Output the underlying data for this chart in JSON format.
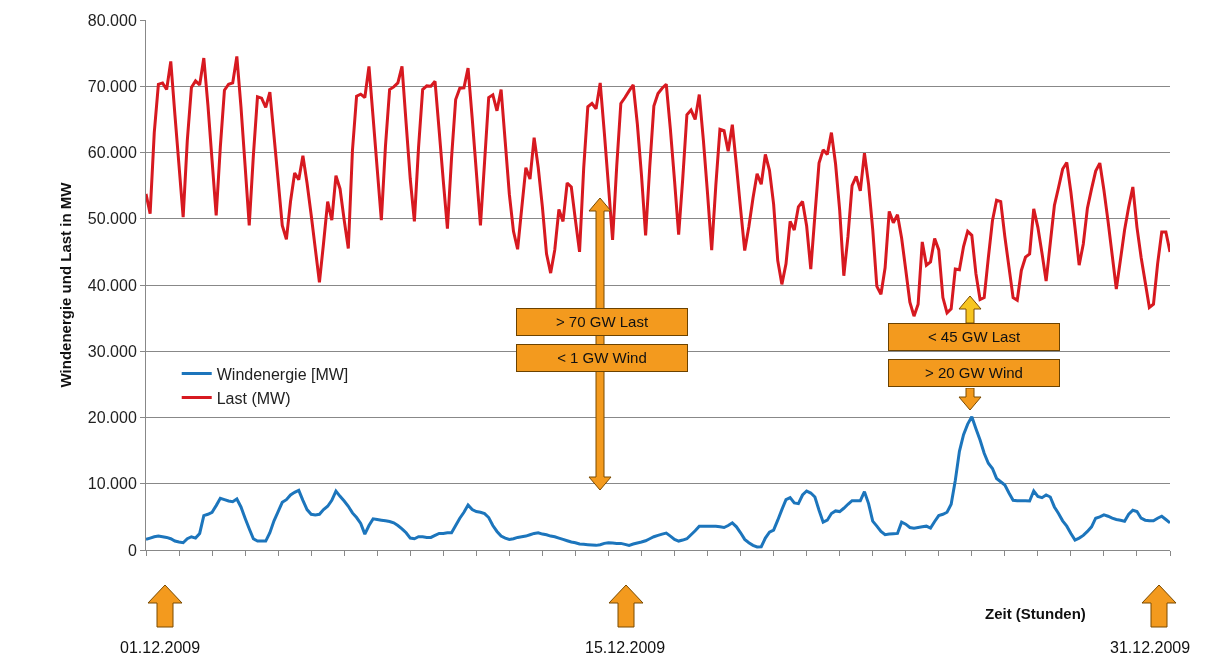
{
  "chart_data": {
    "type": "line",
    "xlabel": "Zeit (Stunden)",
    "ylabel": "Windenergie und Last in MW",
    "categories": [
      null,
      null,
      null,
      null,
      null,
      null,
      null,
      null,
      null,
      null,
      null,
      null,
      null,
      null,
      null,
      null,
      null,
      null,
      null,
      null,
      null,
      null,
      null,
      null,
      null,
      null,
      null,
      null,
      null,
      null,
      null,
      null,
      null,
      null,
      null,
      null,
      null,
      null,
      null,
      null,
      null,
      null,
      null,
      null,
      null,
      null,
      null,
      null,
      null,
      null,
      null,
      null,
      null,
      null,
      null,
      null,
      null,
      null,
      null,
      null,
      null,
      null,
      null,
      null,
      null,
      null,
      null,
      null,
      null,
      null,
      null,
      null,
      null,
      null,
      null,
      null,
      null,
      null,
      null,
      null,
      null,
      null,
      null,
      null,
      null,
      null,
      null,
      null,
      null,
      null,
      null,
      null,
      null,
      null,
      null,
      null,
      null,
      null,
      null,
      null,
      null,
      null,
      null,
      null,
      null,
      null,
      null,
      null,
      null,
      null,
      null,
      null,
      null,
      null,
      null,
      null,
      null,
      null,
      null,
      null,
      null,
      null,
      null,
      null,
      null,
      null,
      null,
      null,
      null,
      null,
      null,
      null,
      null,
      null,
      null,
      null,
      null,
      null,
      null,
      null,
      null,
      null,
      null,
      null,
      null,
      null,
      null,
      null,
      null,
      null,
      null,
      null,
      null,
      null,
      null,
      null,
      null,
      null,
      null,
      null,
      null,
      null,
      null,
      null,
      null,
      null,
      null,
      null,
      null,
      null,
      null,
      null,
      null,
      null,
      null,
      null,
      null,
      null,
      null,
      null,
      null,
      null,
      null,
      null,
      null,
      null,
      null,
      null,
      null,
      null,
      null,
      null,
      null,
      null,
      null,
      null,
      null,
      null,
      null,
      null,
      null,
      null,
      null,
      null,
      null,
      null,
      null,
      null,
      null,
      null,
      null,
      null,
      null,
      null,
      null,
      null,
      null,
      null,
      null,
      null,
      null,
      null,
      null,
      null,
      null,
      null,
      null,
      null,
      null,
      null,
      null,
      null,
      null,
      null,
      null,
      null,
      null,
      null,
      null,
      null,
      null,
      null,
      null,
      null,
      null,
      null,
      null,
      null,
      null
    ],
    "ylim": [
      0,
      80000
    ],
    "yticks": [
      0,
      {
        "value": 10000,
        "label": "10.000"
      },
      {
        "value": 20000,
        "label": "20.000"
      },
      {
        "value": 30000,
        "label": "30.000"
      },
      {
        "value": 40000,
        "label": "40.000"
      },
      {
        "value": 50000,
        "label": "50.000"
      },
      {
        "value": 60000,
        "label": "60.000"
      },
      {
        "value": 70000,
        "label": "70.000"
      },
      {
        "value": 80000,
        "label": "80.000"
      }
    ],
    "tick_labels": "y",
    "grid": "y",
    "legend": "center left",
    "marker": "none",
    "line_style": "solid",
    "series": [
      {
        "name": "Windenergie [MW]",
        "color": "#1c75bc",
        "values": [
          1600,
          1800,
          2000,
          2100,
          2000,
          1900,
          1700,
          1350,
          1200,
          1100,
          1700,
          2000,
          1800,
          2500,
          5200,
          5400,
          5700,
          6700,
          7800,
          7600,
          7400,
          7300,
          7700,
          6500,
          4800,
          3200,
          1700,
          1350,
          1350,
          1350,
          2600,
          4400,
          5800,
          7200,
          7600,
          8300,
          8700,
          9000,
          7500,
          6100,
          5400,
          5300,
          5400,
          6100,
          6600,
          7500,
          8900,
          8100,
          7400,
          6600,
          5600,
          4900,
          4000,
          2400,
          3700,
          4700,
          4600,
          4500,
          4400,
          4300,
          4100,
          3700,
          3200,
          2600,
          1800,
          1700,
          2000,
          2000,
          1900,
          1900,
          2200,
          2500,
          2500,
          2600,
          2600,
          3700,
          4800,
          5700,
          6800,
          6100,
          5800,
          5700,
          5500,
          4900,
          3700,
          2800,
          2100,
          1800,
          1600,
          1700,
          1900,
          2000,
          2100,
          2300,
          2500,
          2600,
          2400,
          2300,
          2100,
          2000,
          1800,
          1600,
          1400,
          1200,
          1100,
          900,
          850,
          800,
          750,
          700,
          800,
          1000,
          1100,
          1050,
          1000,
          1000,
          850,
          700,
          900,
          1050,
          1200,
          1400,
          1700,
          2000,
          2200,
          2400,
          2550,
          2100,
          1600,
          1350,
          1500,
          1700,
          2300,
          2900,
          3600,
          3600,
          3600,
          3600,
          3600,
          3500,
          3400,
          3700,
          4100,
          3500,
          2600,
          1600,
          1100,
          700,
          470,
          500,
          1800,
          2700,
          3000,
          4500,
          6100,
          7600,
          7900,
          7100,
          7000,
          8300,
          8900,
          8600,
          8000,
          6000,
          4200,
          4500,
          5500,
          5900,
          5800,
          6300,
          6900,
          7450,
          7450,
          7450,
          8800,
          7000,
          4350,
          3600,
          2800,
          2300,
          2400,
          2450,
          2500,
          4200,
          3900,
          3400,
          3300,
          3400,
          3500,
          3600,
          3300,
          4300,
          5200,
          5400,
          5700,
          6900,
          10500,
          14900,
          17400,
          19000,
          20100,
          18300,
          16600,
          14600,
          13100,
          12300,
          10800,
          10300,
          9800,
          8600,
          7500,
          7450,
          7450,
          7450,
          7400,
          8900,
          8100,
          7900,
          8300,
          8000,
          6500,
          5500,
          4400,
          3600,
          2500,
          1500,
          1800,
          2200,
          2800,
          3500,
          4800,
          5000,
          5300,
          5100,
          4800,
          4600,
          4500,
          4350,
          5400,
          6000,
          5800,
          4800,
          4500,
          4400,
          4400,
          4800,
          5100,
          4600,
          4100
        ]
      },
      {
        "name": "Last (MW)",
        "color": "#d71920",
        "values": [
          53750,
          50750,
          63000,
          70300,
          70500,
          69500,
          73750,
          65700,
          58000,
          50250,
          61800,
          69800,
          70800,
          70200,
          74250,
          67100,
          58800,
          50500,
          60800,
          69400,
          70300,
          70500,
          74500,
          66900,
          58000,
          49000,
          59500,
          68400,
          68200,
          66800,
          69100,
          62500,
          55800,
          49000,
          46900,
          52600,
          56900,
          55900,
          59500,
          55400,
          50600,
          45500,
          40400,
          46300,
          52600,
          49800,
          56500,
          54500,
          49800,
          45500,
          60300,
          68500,
          68800,
          68300,
          73000,
          65300,
          57500,
          49800,
          61000,
          69500,
          69900,
          70500,
          73000,
          64400,
          56000,
          49600,
          60700,
          69500,
          70050,
          70000,
          70750,
          63300,
          55700,
          48500,
          59200,
          68000,
          69700,
          69750,
          72750,
          65200,
          57100,
          49000,
          58600,
          68300,
          68700,
          66300,
          69500,
          61600,
          53700,
          48100,
          45400,
          51600,
          57700,
          56000,
          62250,
          57700,
          51800,
          44700,
          41800,
          45300,
          51400,
          49600,
          55400,
          54800,
          49800,
          45000,
          57600,
          66900,
          67400,
          66600,
          70500,
          63000,
          55000,
          46800,
          57900,
          67400,
          68300,
          69300,
          70200,
          64300,
          56600,
          47500,
          57800,
          67000,
          68900,
          69700,
          70300,
          63500,
          55800,
          47600,
          56100,
          65700,
          66400,
          65000,
          68750,
          61800,
          53800,
          45250,
          55000,
          63500,
          63300,
          60200,
          64200,
          58000,
          51500,
          45200,
          48800,
          53100,
          56800,
          55200,
          59700,
          57300,
          52200,
          43700,
          40100,
          43200,
          49600,
          48300,
          51800,
          52600,
          48900,
          42400,
          50500,
          58400,
          60400,
          59700,
          63000,
          58300,
          51300,
          41400,
          47300,
          55000,
          56400,
          54200,
          59900,
          55200,
          48400,
          39800,
          38600,
          42600,
          51100,
          49400,
          50600,
          47100,
          42300,
          37400,
          35300,
          37100,
          46500,
          43000,
          43500,
          47000,
          45300,
          38100,
          35800,
          36400,
          42400,
          42300,
          45800,
          48100,
          47500,
          41700,
          37800,
          38100,
          44100,
          49700,
          52800,
          52600,
          47300,
          42700,
          38100,
          37700,
          42200,
          44200,
          44700,
          51500,
          48700,
          44800,
          40600,
          46300,
          52000,
          54700,
          57500,
          58500,
          54000,
          48600,
          43000,
          46200,
          51600,
          54500,
          57200,
          58400,
          54300,
          49600,
          44500,
          39400,
          43800,
          48300,
          51800,
          54800,
          48700,
          44200,
          40400,
          36600,
          37100,
          43200,
          48000,
          48000,
          45000
        ]
      }
    ],
    "annotations": [
      "> 70 GW Last",
      "< 1 GW Wind",
      "< 45 GW Last",
      "> 20 GW Wind",
      "01.12.2009",
      "15.12.2009",
      "31.12.2009"
    ]
  }
}
